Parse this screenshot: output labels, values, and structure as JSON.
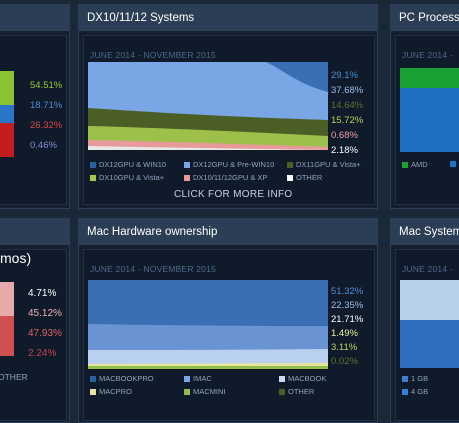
{
  "left_top": {
    "percents": [
      {
        "text": "54.51%",
        "color": "#9acd32"
      },
      {
        "text": "18.71%",
        "color": "#4a90d9"
      },
      {
        "text": "26.32%",
        "color": "#d9463e"
      },
      {
        "text": "0.46%",
        "color": "#7f8fd0"
      }
    ],
    "bar_colors": [
      "#8bc232",
      "#2a77c9",
      "#c41d1d"
    ]
  },
  "dx_panel": {
    "title": "DX10/11/12 Systems",
    "range": "JUNE 2014 - NOVEMBER 2015",
    "percents": [
      {
        "text": "29.1%",
        "color": "#4a90d9"
      },
      {
        "text": "37.68%",
        "color": "#9dbef0"
      },
      {
        "text": "14.64%",
        "color": "#5d7330"
      },
      {
        "text": "15.72%",
        "color": "#b4d55a"
      },
      {
        "text": "0.68%",
        "color": "#f0a0a0"
      },
      {
        "text": "2.18%",
        "color": "#ffffff"
      }
    ],
    "legend": [
      {
        "label": "DX12GPU & WIN10",
        "color": "#2a5fa0"
      },
      {
        "label": "DX12GPU & Pre-WIN10",
        "color": "#7aa6e6"
      },
      {
        "label": "DX11GPU & Vista+",
        "color": "#4a5e26"
      },
      {
        "label": "DX10GPU & Vista+",
        "color": "#a4c84c"
      },
      {
        "label": "DX10/11/12GPU & XP",
        "color": "#e89a9a"
      },
      {
        "label": "OTHER",
        "color": "#ffffff"
      }
    ],
    "click_label": "CLICK FOR MORE INFO"
  },
  "pc_panel": {
    "title": "PC Process",
    "range": "JUNE 2014 -",
    "legend": [
      {
        "label": "AMD",
        "color": "#1aa334"
      }
    ]
  },
  "left_bottom": {
    "title": "mos)",
    "percents": [
      {
        "text": "4.71%",
        "color": "#ffffff"
      },
      {
        "text": "45.12%",
        "color": "#f0b0b0"
      },
      {
        "text": "47.93%",
        "color": "#e06060"
      },
      {
        "text": "2.24%",
        "color": "#c04848"
      }
    ],
    "other_label": "OTHER"
  },
  "mac_panel": {
    "title": "Mac Hardware ownership",
    "range": "JUNE 2014 - NOVEMBER 2015",
    "percents": [
      {
        "text": "51.32%",
        "color": "#4a90d9"
      },
      {
        "text": "22.35%",
        "color": "#9dbef0"
      },
      {
        "text": "21.71%",
        "color": "#ffffff"
      },
      {
        "text": "1.49%",
        "color": "#f0f0a0"
      },
      {
        "text": "3.11%",
        "color": "#b4d55a"
      },
      {
        "text": "0.02%",
        "color": "#5d7330"
      }
    ],
    "legend": [
      {
        "label": "MACBOOKPRO",
        "color": "#2a5fa0"
      },
      {
        "label": "IMAC",
        "color": "#7aa6e6"
      },
      {
        "label": "MACBOOK",
        "color": "#c8ddf5"
      },
      {
        "label": "MACPRO",
        "color": "#e6e6a0"
      },
      {
        "label": "MACMINI",
        "color": "#8fbf4a"
      },
      {
        "label": "OTHER",
        "color": "#4a5e26"
      }
    ]
  },
  "mac_sys_panel": {
    "title": "Mac System",
    "range": "JUNE 2014 -",
    "legend": [
      {
        "label": "1 GB",
        "color": "#3a7fd0"
      },
      {
        "label": "4 GB",
        "color": "#3a7fd0"
      }
    ]
  }
}
